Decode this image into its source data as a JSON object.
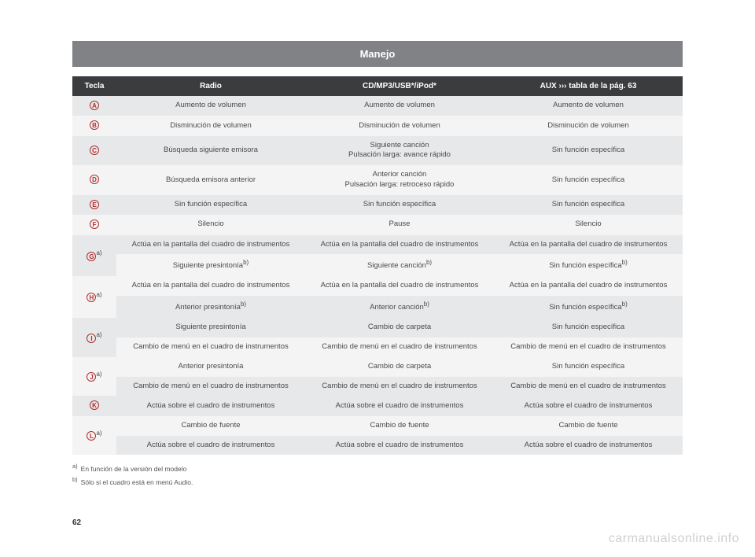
{
  "title": "Manejo",
  "pageNumber": "62",
  "watermark": "carmanualsonline.info",
  "headers": {
    "col1": "Tecla",
    "col2": "Radio",
    "col3": "CD/MP3/USB*/iPod*",
    "col4": "AUX ››› tabla de la pág. 63"
  },
  "rows": [
    {
      "key": "A",
      "sup": "",
      "span": 1,
      "radio": "Aumento de volumen",
      "cd": "Aumento de volumen",
      "aux": "Aumento de volumen"
    },
    {
      "key": "B",
      "sup": "",
      "span": 1,
      "radio": "Disminución de volumen",
      "cd": "Disminución de volumen",
      "aux": "Disminución de volumen"
    },
    {
      "key": "C",
      "sup": "",
      "span": 1,
      "radio": "Búsqueda siguiente emisora",
      "cd": "Siguiente canción\nPulsación larga: avance rápido",
      "aux": "Sin función específica"
    },
    {
      "key": "D",
      "sup": "",
      "span": 1,
      "radio": "Búsqueda emisora anterior",
      "cd": "Anterior canción\nPulsación larga: retroceso rápido",
      "aux": "Sin función específica"
    },
    {
      "key": "E",
      "sup": "",
      "span": 1,
      "radio": "Sin función específica",
      "cd": "Sin función específica",
      "aux": "Sin función específica"
    },
    {
      "key": "F",
      "sup": "",
      "span": 1,
      "radio": "Silencio",
      "cd": "Pause",
      "aux": "Silencio"
    },
    {
      "key": "G",
      "sup": "a)",
      "span": 2,
      "r1": {
        "radio": "Actúa en la pantalla del cuadro de instrumentos",
        "cd": "Actúa en la pantalla del cuadro de instrumentos",
        "aux": "Actúa en la pantalla del cuadro de instrumentos"
      },
      "r2": {
        "radio": "Siguiente presintonía",
        "radio_sup": "b)",
        "cd": "Siguiente canción",
        "cd_sup": "b)",
        "aux": "Sin función específica",
        "aux_sup": "b)"
      }
    },
    {
      "key": "H",
      "sup": "a)",
      "span": 2,
      "r1": {
        "radio": "Actúa en la pantalla del cuadro de instrumentos",
        "cd": "Actúa en la pantalla del cuadro de instrumentos",
        "aux": "Actúa en la pantalla del cuadro de instrumentos"
      },
      "r2": {
        "radio": "Anterior presintonía",
        "radio_sup": "b)",
        "cd": "Anterior canción",
        "cd_sup": "b)",
        "aux": "Sin función específica",
        "aux_sup": "b)"
      }
    },
    {
      "key": "I",
      "sup": "a)",
      "span": 2,
      "r1": {
        "radio": "Siguiente presintonía",
        "cd": "Cambio de carpeta",
        "aux": "Sin función específica"
      },
      "r2": {
        "radio": "Cambio de menú en el cuadro de instrumentos",
        "cd": "Cambio de menú en el cuadro de instrumentos",
        "aux": "Cambio de menú en el cuadro de instrumentos"
      }
    },
    {
      "key": "J",
      "sup": "a)",
      "span": 2,
      "r1": {
        "radio": "Anterior presintonía",
        "cd": "Cambio de carpeta",
        "aux": "Sin función específica"
      },
      "r2": {
        "radio": "Cambio de menú en el cuadro de instrumentos",
        "cd": "Cambio de menú en el cuadro de instrumentos",
        "aux": "Cambio de menú en el cuadro de instrumentos"
      }
    },
    {
      "key": "K",
      "sup": "",
      "span": 1,
      "radio": "Actúa sobre el cuadro de instrumentos",
      "cd": "Actúa sobre el cuadro de instrumentos",
      "aux": "Actúa sobre el cuadro de instrumentos"
    },
    {
      "key": "L",
      "sup": "a)",
      "span": 2,
      "r1": {
        "radio": "Cambio de fuente",
        "cd": "Cambio de fuente",
        "aux": "Cambio de fuente"
      },
      "r2": {
        "radio": "Actúa sobre el cuadro de instrumentos",
        "cd": "Actúa sobre el cuadro de instrumentos",
        "aux": "Actúa sobre el cuadro de instrumentos"
      }
    }
  ],
  "footnotes": {
    "a": "En función de la versión del modelo",
    "b": "Sólo si el cuadro está en menú Audio."
  }
}
